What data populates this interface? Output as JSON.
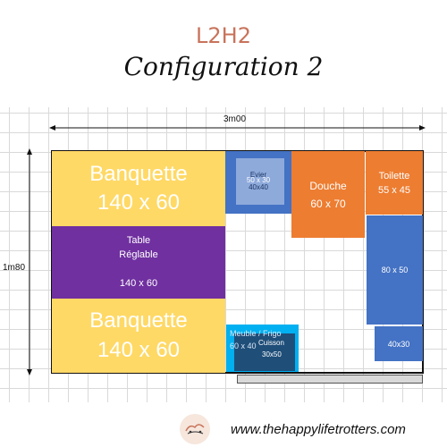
{
  "header": {
    "subtitle": "L2H2",
    "title": "Configuration 2"
  },
  "dimensions": {
    "width_label": "3m00",
    "height_label": "1m80"
  },
  "plan": {
    "banquette_top": {
      "name": "Banquette",
      "size": "140 x 60"
    },
    "table": {
      "name_line1": "Table",
      "name_line2": "Réglable",
      "size": "140 x 60"
    },
    "banquette_bottom": {
      "name": "Banquette",
      "size": "140 x 60"
    },
    "evier": {
      "name": "Evier",
      "size": "40x40",
      "inner_size": "50 x 30"
    },
    "douche": {
      "name": "Douche",
      "size": "60 x 70"
    },
    "toilette": {
      "name": "Toilette",
      "size": "55 x 45"
    },
    "cabinet": {
      "size": "80 x 50"
    },
    "small_cabinet": {
      "size": "40x30"
    },
    "meuble": {
      "name": "Meuble / Frigo",
      "size": "60 x 40"
    },
    "cuisson": {
      "name": "Cuisson",
      "size": "30x50"
    }
  },
  "footer": {
    "website": "www.thehappylifetrotters.com"
  },
  "colors": {
    "banquette": "#ffd966",
    "table": "#7030a0",
    "douche": "#ed7d31",
    "blue": "#4472c4",
    "evier_inner": "#8eaadb",
    "meuble": "#00b0f0",
    "cuisson": "#1f4e79",
    "step": "#d9d9d9"
  }
}
